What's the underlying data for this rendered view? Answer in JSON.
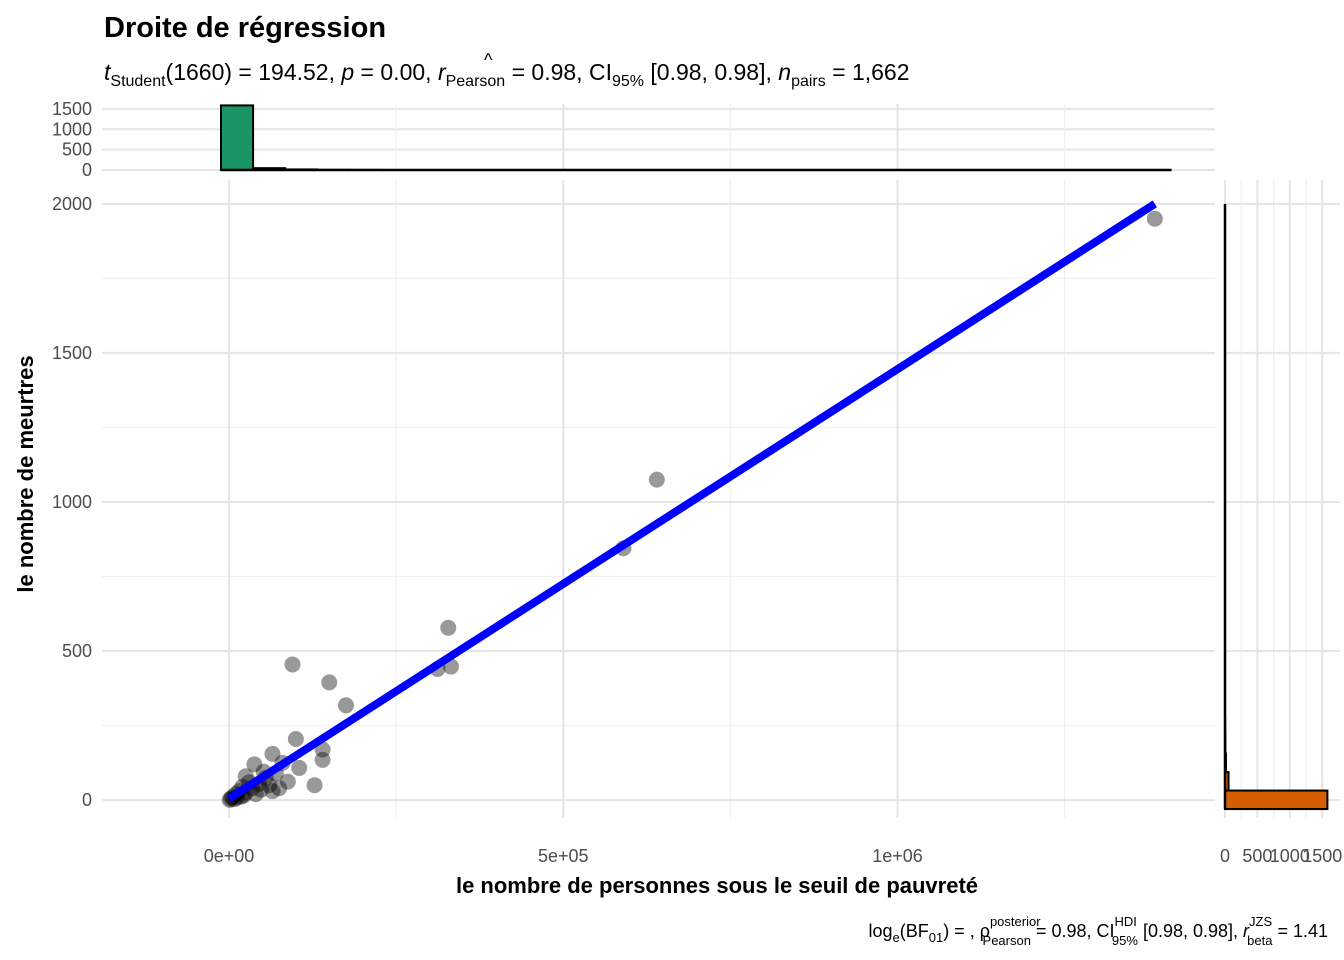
{
  "chart_data": {
    "type": "scatter",
    "title": "Droite de régression",
    "subtitle": {
      "t_sym": "t",
      "t_sub": "Student",
      "t_val": "(1660) = 194.52, ",
      "p_sym": "p",
      "p_val": " = 0.00, ",
      "r_sym": "r",
      "r_hat": "^",
      "r_sub": "Pearson",
      "r_val": " = 0.98, CI",
      "ci_sub": "95%",
      "ci_val": " [0.98, 0.98], ",
      "n_sym": "n",
      "n_sub": "pairs",
      "n_val": " = 1,662"
    },
    "caption": {
      "log": "log",
      "log_sub": "e",
      "bf_open": "(BF",
      "bf_sub": "01",
      "bf_close": ") = , ",
      "rho": "ρ",
      "rho_hat": "^",
      "rho_sup": "posterior",
      "rho_sub": "Pearson",
      "rho_val": " = 0.98, CI",
      "ci_sup": "HDI",
      "ci_sub": "95%",
      "ci_val": " [0.98, 0.98], ",
      "r_sym": "r",
      "r_sup": "JZS",
      "r_sub": "beta",
      "r_val": " = 1.41"
    },
    "xlabel": "le nombre de personnes sous le seuil de pauvreté",
    "ylabel": "le nombre de meurtres",
    "xlim": [
      -190000,
      1475000
    ],
    "ylim": [
      -60,
      2080
    ],
    "x_ticks": [
      0,
      500000,
      1000000
    ],
    "x_tick_labels": [
      "0e+00",
      "5e+05",
      "1e+06"
    ],
    "y_ticks": [
      0,
      500,
      1000,
      1500,
      2000
    ],
    "y_tick_labels": [
      "0",
      "500",
      "1000",
      "1500",
      "2000"
    ],
    "grid": true,
    "regression_line": {
      "x": [
        0,
        1385000
      ],
      "y": [
        5,
        2000
      ],
      "color": "#0000ff"
    },
    "points_color": "#000000",
    "points": [
      {
        "x": 1385000,
        "y": 1950
      },
      {
        "x": 640000,
        "y": 1075
      },
      {
        "x": 590000,
        "y": 845
      },
      {
        "x": 328000,
        "y": 578
      },
      {
        "x": 332000,
        "y": 448
      },
      {
        "x": 312000,
        "y": 440
      },
      {
        "x": 95000,
        "y": 455
      },
      {
        "x": 150000,
        "y": 395
      },
      {
        "x": 175000,
        "y": 318
      },
      {
        "x": 100000,
        "y": 205
      },
      {
        "x": 140000,
        "y": 170
      },
      {
        "x": 140000,
        "y": 135
      },
      {
        "x": 105000,
        "y": 108
      },
      {
        "x": 128000,
        "y": 50
      },
      {
        "x": 65000,
        "y": 155
      },
      {
        "x": 80000,
        "y": 125
      },
      {
        "x": 38000,
        "y": 120
      },
      {
        "x": 70000,
        "y": 90
      },
      {
        "x": 55000,
        "y": 75
      },
      {
        "x": 88000,
        "y": 62
      },
      {
        "x": 60000,
        "y": 50
      },
      {
        "x": 45000,
        "y": 55
      },
      {
        "x": 25000,
        "y": 80
      },
      {
        "x": 30000,
        "y": 60
      },
      {
        "x": 20000,
        "y": 45
      },
      {
        "x": 35000,
        "y": 40
      },
      {
        "x": 15000,
        "y": 30
      },
      {
        "x": 25000,
        "y": 25
      },
      {
        "x": 10000,
        "y": 20
      },
      {
        "x": 40000,
        "y": 20
      },
      {
        "x": 5000,
        "y": 10
      },
      {
        "x": 12000,
        "y": 8
      },
      {
        "x": 18000,
        "y": 12
      },
      {
        "x": 3000,
        "y": 5
      },
      {
        "x": 8000,
        "y": 3
      },
      {
        "x": 1000,
        "y": 1
      },
      {
        "x": 22000,
        "y": 15
      },
      {
        "x": 48000,
        "y": 35
      },
      {
        "x": 65000,
        "y": 30
      },
      {
        "x": 75000,
        "y": 40
      },
      {
        "x": 52000,
        "y": 95
      }
    ],
    "top_histogram": {
      "color": "#1a9566",
      "y_ticks": [
        0,
        500,
        1000,
        1500
      ],
      "y_tick_labels": [
        "0",
        "500",
        "1000",
        "1500"
      ],
      "ymax": 1620,
      "bin_width": 48000,
      "bins": [
        {
          "x0": -12000,
          "count": 1585
        },
        {
          "x0": 36000,
          "count": 45
        },
        {
          "x0": 84000,
          "count": 14
        },
        {
          "x0": 132000,
          "count": 5
        },
        {
          "x0": 180000,
          "count": 3
        }
      ],
      "range_end": 1410000
    },
    "right_histogram": {
      "color": "#d55e00",
      "x_ticks": [
        0,
        500,
        1000,
        1500
      ],
      "x_tick_labels": [
        "0",
        "500",
        "1000",
        "1500"
      ],
      "xmax": 1620,
      "bin_width": 62,
      "bins": [
        {
          "y0": -30,
          "count": 1580
        },
        {
          "y0": 32,
          "count": 55
        },
        {
          "y0": 94,
          "count": 15
        },
        {
          "y0": 156,
          "count": 6
        },
        {
          "y0": 218,
          "count": 3
        }
      ],
      "range_end": 2000
    }
  }
}
